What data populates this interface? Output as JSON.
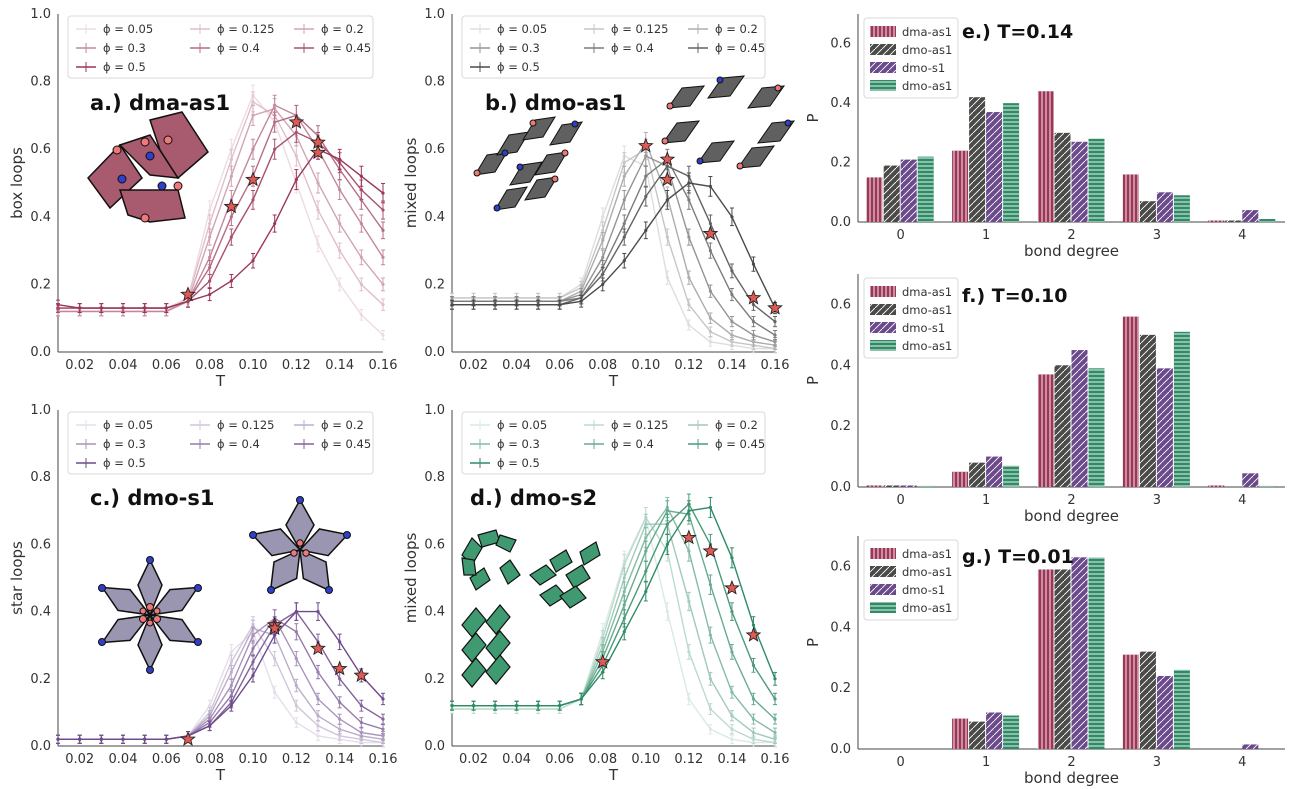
{
  "chart_data": [
    {
      "id": "a",
      "type": "line",
      "title": "a.) dma-as1",
      "xlabel": "T",
      "ylabel": "box loops",
      "xlim": [
        0.01,
        0.16
      ],
      "ylim": [
        0.0,
        1.0
      ],
      "xticks": [
        "0.02",
        "0.04",
        "0.06",
        "0.08",
        "0.10",
        "0.12",
        "0.14",
        "0.16"
      ],
      "yticks": [
        "0.0",
        "0.2",
        "0.4",
        "0.6",
        "0.8",
        "1.0"
      ],
      "legend_position": "top",
      "base_color": "#9b3655",
      "x": [
        0.01,
        0.02,
        0.03,
        0.04,
        0.05,
        0.06,
        0.07,
        0.08,
        0.09,
        0.1,
        0.11,
        0.12,
        0.13,
        0.14,
        0.15,
        0.16
      ],
      "series": [
        {
          "name": "ϕ = 0.05",
          "values": [
            0.13,
            0.13,
            0.13,
            0.13,
            0.13,
            0.13,
            0.16,
            0.42,
            0.6,
            0.76,
            0.68,
            0.5,
            0.32,
            0.2,
            0.11,
            0.05
          ]
        },
        {
          "name": "ϕ = 0.125",
          "values": [
            0.12,
            0.12,
            0.12,
            0.12,
            0.12,
            0.12,
            0.16,
            0.38,
            0.57,
            0.74,
            0.7,
            0.58,
            0.42,
            0.3,
            0.2,
            0.14
          ]
        },
        {
          "name": "ϕ = 0.2",
          "values": [
            0.12,
            0.12,
            0.12,
            0.12,
            0.12,
            0.12,
            0.15,
            0.34,
            0.52,
            0.7,
            0.72,
            0.64,
            0.5,
            0.38,
            0.28,
            0.2
          ]
        },
        {
          "name": "ϕ = 0.3",
          "values": [
            0.12,
            0.12,
            0.12,
            0.12,
            0.12,
            0.12,
            0.15,
            0.28,
            0.45,
            0.6,
            0.73,
            0.7,
            0.6,
            0.48,
            0.38,
            0.28
          ]
        },
        {
          "name": "ϕ = 0.4",
          "values": [
            0.13,
            0.13,
            0.13,
            0.13,
            0.13,
            0.13,
            0.15,
            0.25,
            0.4,
            0.52,
            0.68,
            0.7,
            0.64,
            0.54,
            0.45,
            0.36
          ]
        },
        {
          "name": "ϕ = 0.45",
          "values": [
            0.13,
            0.13,
            0.13,
            0.13,
            0.13,
            0.13,
            0.15,
            0.21,
            0.34,
            0.45,
            0.6,
            0.65,
            0.62,
            0.56,
            0.48,
            0.42
          ]
        },
        {
          "name": "ϕ = 0.5",
          "values": [
            0.14,
            0.13,
            0.13,
            0.13,
            0.13,
            0.13,
            0.15,
            0.17,
            0.21,
            0.27,
            0.38,
            0.51,
            0.6,
            0.57,
            0.52,
            0.47
          ]
        }
      ],
      "stars": [
        [
          0.07,
          0.17
        ],
        [
          0.09,
          0.43
        ],
        [
          0.1,
          0.51
        ],
        [
          0.12,
          0.68
        ],
        [
          0.13,
          0.62
        ],
        [
          0.13,
          0.59
        ]
      ]
    },
    {
      "id": "b",
      "type": "line",
      "title": "b.) dmo-as1",
      "xlabel": "T",
      "ylabel": "mixed loops",
      "xlim": [
        0.01,
        0.16
      ],
      "ylim": [
        0.0,
        1.0
      ],
      "xticks": [
        "0.02",
        "0.04",
        "0.06",
        "0.08",
        "0.10",
        "0.12",
        "0.14",
        "0.16"
      ],
      "yticks": [
        "0.0",
        "0.2",
        "0.4",
        "0.6",
        "0.8",
        "1.0"
      ],
      "legend_position": "top",
      "base_color": "#4a4a4a",
      "x": [
        0.01,
        0.02,
        0.03,
        0.04,
        0.05,
        0.06,
        0.07,
        0.08,
        0.09,
        0.1,
        0.11,
        0.12,
        0.13,
        0.14,
        0.15,
        0.16
      ],
      "series": [
        {
          "name": "ϕ = 0.05",
          "values": [
            0.16,
            0.16,
            0.16,
            0.16,
            0.16,
            0.16,
            0.2,
            0.4,
            0.58,
            0.55,
            0.22,
            0.08,
            0.03,
            0.02,
            0.01,
            0.01
          ]
        },
        {
          "name": "ϕ = 0.125",
          "values": [
            0.16,
            0.16,
            0.16,
            0.16,
            0.16,
            0.16,
            0.19,
            0.36,
            0.56,
            0.6,
            0.34,
            0.14,
            0.06,
            0.03,
            0.02,
            0.01
          ]
        },
        {
          "name": "ϕ = 0.2",
          "values": [
            0.15,
            0.15,
            0.15,
            0.15,
            0.15,
            0.15,
            0.18,
            0.33,
            0.52,
            0.62,
            0.46,
            0.22,
            0.1,
            0.05,
            0.03,
            0.02
          ]
        },
        {
          "name": "ϕ = 0.3",
          "values": [
            0.15,
            0.15,
            0.15,
            0.15,
            0.15,
            0.15,
            0.17,
            0.28,
            0.45,
            0.58,
            0.55,
            0.34,
            0.18,
            0.09,
            0.05,
            0.03
          ]
        },
        {
          "name": "ϕ = 0.4",
          "values": [
            0.15,
            0.15,
            0.15,
            0.15,
            0.15,
            0.15,
            0.16,
            0.25,
            0.38,
            0.52,
            0.57,
            0.45,
            0.3,
            0.17,
            0.09,
            0.05
          ]
        },
        {
          "name": "ϕ = 0.45",
          "values": [
            0.14,
            0.14,
            0.14,
            0.14,
            0.14,
            0.14,
            0.16,
            0.23,
            0.34,
            0.46,
            0.55,
            0.52,
            0.38,
            0.24,
            0.14,
            0.09
          ]
        },
        {
          "name": "ϕ = 0.5",
          "values": [
            0.14,
            0.14,
            0.14,
            0.14,
            0.14,
            0.14,
            0.15,
            0.2,
            0.27,
            0.36,
            0.45,
            0.5,
            0.49,
            0.4,
            0.26,
            0.13
          ]
        }
      ],
      "stars": [
        [
          0.1,
          0.61
        ],
        [
          0.11,
          0.57
        ],
        [
          0.11,
          0.51
        ],
        [
          0.13,
          0.35
        ],
        [
          0.15,
          0.16
        ],
        [
          0.16,
          0.13
        ]
      ]
    },
    {
      "id": "c",
      "type": "line",
      "title": "c.) dmo-s1",
      "xlabel": "T",
      "ylabel": "star loops",
      "xlim": [
        0.01,
        0.16
      ],
      "ylim": [
        0.0,
        1.0
      ],
      "xticks": [
        "0.02",
        "0.04",
        "0.06",
        "0.08",
        "0.10",
        "0.12",
        "0.14",
        "0.16"
      ],
      "yticks": [
        "0.0",
        "0.2",
        "0.4",
        "0.6",
        "0.8",
        "1.0"
      ],
      "legend_position": "top",
      "base_color": "#6e4a8c",
      "x": [
        0.01,
        0.02,
        0.03,
        0.04,
        0.05,
        0.06,
        0.07,
        0.08,
        0.09,
        0.1,
        0.11,
        0.12,
        0.13,
        0.14,
        0.15,
        0.16
      ],
      "series": [
        {
          "name": "ϕ = 0.05",
          "values": [
            0.02,
            0.02,
            0.02,
            0.02,
            0.02,
            0.02,
            0.03,
            0.12,
            0.28,
            0.34,
            0.16,
            0.07,
            0.03,
            0.02,
            0.01,
            0.01
          ]
        },
        {
          "name": "ϕ = 0.125",
          "values": [
            0.02,
            0.02,
            0.02,
            0.02,
            0.02,
            0.02,
            0.03,
            0.1,
            0.25,
            0.36,
            0.26,
            0.12,
            0.06,
            0.03,
            0.02,
            0.01
          ]
        },
        {
          "name": "ϕ = 0.2",
          "values": [
            0.02,
            0.02,
            0.02,
            0.02,
            0.02,
            0.02,
            0.03,
            0.09,
            0.22,
            0.35,
            0.33,
            0.18,
            0.09,
            0.05,
            0.03,
            0.02
          ]
        },
        {
          "name": "ϕ = 0.3",
          "values": [
            0.02,
            0.02,
            0.02,
            0.02,
            0.02,
            0.02,
            0.03,
            0.08,
            0.18,
            0.33,
            0.38,
            0.26,
            0.14,
            0.08,
            0.04,
            0.03
          ]
        },
        {
          "name": "ϕ = 0.4",
          "values": [
            0.02,
            0.02,
            0.02,
            0.02,
            0.02,
            0.02,
            0.03,
            0.07,
            0.15,
            0.29,
            0.38,
            0.34,
            0.22,
            0.13,
            0.07,
            0.05
          ]
        },
        {
          "name": "ϕ = 0.45",
          "values": [
            0.02,
            0.02,
            0.02,
            0.02,
            0.02,
            0.02,
            0.03,
            0.06,
            0.13,
            0.25,
            0.36,
            0.4,
            0.31,
            0.2,
            0.12,
            0.08
          ]
        },
        {
          "name": "ϕ = 0.5",
          "values": [
            0.02,
            0.02,
            0.02,
            0.02,
            0.02,
            0.02,
            0.03,
            0.06,
            0.12,
            0.21,
            0.33,
            0.4,
            0.4,
            0.31,
            0.21,
            0.14
          ]
        }
      ],
      "stars": [
        [
          0.07,
          0.02
        ],
        [
          0.11,
          0.36
        ],
        [
          0.11,
          0.35
        ],
        [
          0.13,
          0.29
        ],
        [
          0.14,
          0.23
        ],
        [
          0.15,
          0.21
        ]
      ]
    },
    {
      "id": "d",
      "type": "line",
      "title": "d.) dmo-s2",
      "xlabel": "T",
      "ylabel": "mixed loops",
      "xlim": [
        0.01,
        0.16
      ],
      "ylim": [
        0.0,
        1.0
      ],
      "xticks": [
        "0.02",
        "0.04",
        "0.06",
        "0.08",
        "0.10",
        "0.12",
        "0.14",
        "0.16"
      ],
      "yticks": [
        "0.0",
        "0.2",
        "0.4",
        "0.6",
        "0.8",
        "1.0"
      ],
      "legend_position": "top",
      "base_color": "#2e8b65",
      "x": [
        0.01,
        0.02,
        0.03,
        0.04,
        0.05,
        0.06,
        0.07,
        0.08,
        0.09,
        0.1,
        0.11,
        0.12,
        0.13,
        0.14,
        0.15,
        0.16
      ],
      "series": [
        {
          "name": "ϕ = 0.05",
          "values": [
            0.11,
            0.11,
            0.11,
            0.11,
            0.11,
            0.11,
            0.14,
            0.34,
            0.55,
            0.68,
            0.4,
            0.14,
            0.05,
            0.02,
            0.01,
            0.01
          ]
        },
        {
          "name": "ϕ = 0.125",
          "values": [
            0.11,
            0.11,
            0.11,
            0.11,
            0.11,
            0.11,
            0.14,
            0.32,
            0.54,
            0.68,
            0.58,
            0.28,
            0.11,
            0.05,
            0.02,
            0.01
          ]
        },
        {
          "name": "ϕ = 0.2",
          "values": [
            0.12,
            0.12,
            0.12,
            0.12,
            0.12,
            0.12,
            0.14,
            0.3,
            0.5,
            0.66,
            0.66,
            0.43,
            0.2,
            0.09,
            0.04,
            0.02
          ]
        },
        {
          "name": "ϕ = 0.3",
          "values": [
            0.12,
            0.12,
            0.12,
            0.12,
            0.12,
            0.12,
            0.14,
            0.28,
            0.46,
            0.62,
            0.71,
            0.58,
            0.33,
            0.16,
            0.08,
            0.04
          ]
        },
        {
          "name": "ϕ = 0.4",
          "values": [
            0.12,
            0.12,
            0.12,
            0.12,
            0.12,
            0.12,
            0.14,
            0.26,
            0.42,
            0.58,
            0.7,
            0.69,
            0.48,
            0.28,
            0.14,
            0.08
          ]
        },
        {
          "name": "ϕ = 0.45",
          "values": [
            0.12,
            0.12,
            0.12,
            0.12,
            0.12,
            0.12,
            0.14,
            0.24,
            0.38,
            0.52,
            0.66,
            0.72,
            0.6,
            0.4,
            0.24,
            0.14
          ]
        },
        {
          "name": "ϕ = 0.5",
          "values": [
            0.12,
            0.12,
            0.12,
            0.12,
            0.12,
            0.12,
            0.14,
            0.22,
            0.34,
            0.46,
            0.6,
            0.7,
            0.71,
            0.56,
            0.36,
            0.2
          ]
        }
      ],
      "stars": [
        [
          0.08,
          0.25
        ],
        [
          0.12,
          0.62
        ],
        [
          0.13,
          0.58
        ],
        [
          0.14,
          0.47
        ],
        [
          0.15,
          0.33
        ]
      ]
    },
    {
      "id": "e",
      "type": "bar",
      "title": "e.) T=0.14",
      "xlabel": "bond degree",
      "ylabel": "P",
      "categories": [
        "0",
        "1",
        "2",
        "3",
        "4"
      ],
      "ylim": [
        0.0,
        0.7
      ],
      "yticks": [
        "0.0",
        "0.2",
        "0.4",
        "0.6"
      ],
      "legend_position": "top-left",
      "series": [
        {
          "name": "dma-as1",
          "color": "#9b3655",
          "hatch": "vertical",
          "values": [
            0.15,
            0.24,
            0.44,
            0.16,
            0.005
          ]
        },
        {
          "name": "dmo-as1",
          "color": "#4a4a48",
          "hatch": "diagonal",
          "values": [
            0.19,
            0.42,
            0.3,
            0.07,
            0.005
          ]
        },
        {
          "name": "dmo-s1",
          "color": "#6b4a8c",
          "hatch": "diagonal",
          "values": [
            0.21,
            0.37,
            0.27,
            0.1,
            0.04
          ]
        },
        {
          "name": "dmo-as1",
          "color": "#2e8b65",
          "hatch": "horizontal",
          "values": [
            0.22,
            0.4,
            0.28,
            0.09,
            0.01
          ]
        }
      ]
    },
    {
      "id": "f",
      "type": "bar",
      "title": "f.) T=0.10",
      "xlabel": "bond degree",
      "ylabel": "P",
      "categories": [
        "0",
        "1",
        "2",
        "3",
        "4"
      ],
      "ylim": [
        0.0,
        0.7
      ],
      "yticks": [
        "0.0",
        "0.2",
        "0.4",
        "0.6"
      ],
      "legend_position": "top-left",
      "series": [
        {
          "name": "dma-as1",
          "color": "#9b3655",
          "hatch": "vertical",
          "values": [
            0.005,
            0.05,
            0.37,
            0.56,
            0.005
          ]
        },
        {
          "name": "dmo-as1",
          "color": "#4a4a48",
          "hatch": "diagonal",
          "values": [
            0.005,
            0.08,
            0.4,
            0.5,
            0.0
          ]
        },
        {
          "name": "dmo-s1",
          "color": "#6b4a8c",
          "hatch": "diagonal",
          "values": [
            0.005,
            0.1,
            0.45,
            0.39,
            0.045
          ]
        },
        {
          "name": "dmo-as1",
          "color": "#2e8b65",
          "hatch": "horizontal",
          "values": [
            0.005,
            0.07,
            0.39,
            0.51,
            0.005
          ]
        }
      ]
    },
    {
      "id": "g",
      "type": "bar",
      "title": "g.) T=0.01",
      "xlabel": "bond degree",
      "ylabel": "P",
      "categories": [
        "0",
        "1",
        "2",
        "3",
        "4"
      ],
      "ylim": [
        0.0,
        0.7
      ],
      "yticks": [
        "0.0",
        "0.2",
        "0.4",
        "0.6"
      ],
      "legend_position": "top-left",
      "series": [
        {
          "name": "dma-as1",
          "color": "#9b3655",
          "hatch": "vertical",
          "values": [
            0.0,
            0.1,
            0.59,
            0.31,
            0.0
          ]
        },
        {
          "name": "dmo-as1",
          "color": "#4a4a48",
          "hatch": "diagonal",
          "values": [
            0.0,
            0.09,
            0.59,
            0.32,
            0.0
          ]
        },
        {
          "name": "dmo-s1",
          "color": "#6b4a8c",
          "hatch": "diagonal",
          "values": [
            0.0,
            0.12,
            0.63,
            0.24,
            0.015
          ]
        },
        {
          "name": "dmo-as1",
          "color": "#2e8b65",
          "hatch": "horizontal",
          "values": [
            0.0,
            0.11,
            0.63,
            0.26,
            0.0
          ]
        }
      ]
    }
  ],
  "colors": {
    "star_fill": "#e05a55",
    "star_stroke": "#222222",
    "shape_fill_a": "#a85a6e",
    "shape_fill_b": "#606060",
    "shape_fill_c": "#9a96b2",
    "shape_fill_d": "#3f9a72",
    "patch_red": "#f07878",
    "patch_blue": "#2e3fc8"
  }
}
